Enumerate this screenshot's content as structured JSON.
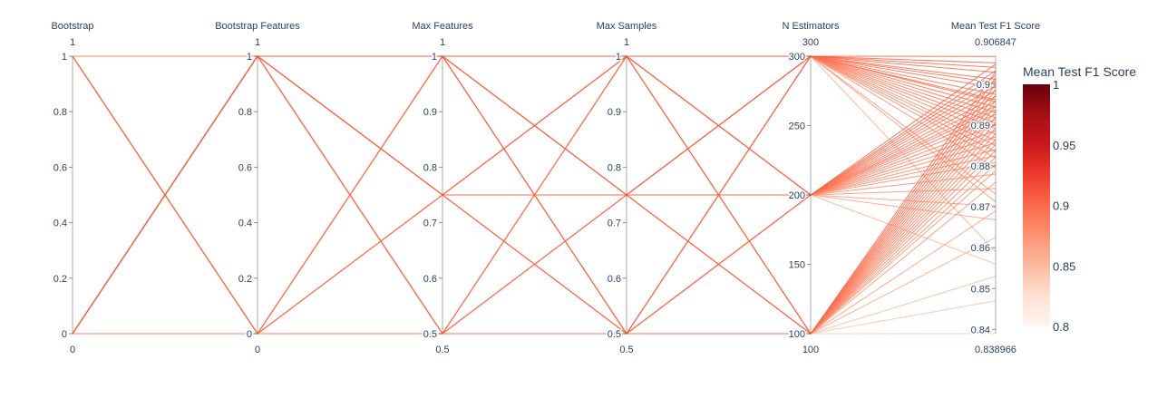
{
  "chart_data": {
    "type": "parallel_coordinates",
    "dimensions": [
      {
        "label": "Bootstrap",
        "range": [
          0,
          1
        ],
        "range_min_label": "0",
        "range_max_label": "1",
        "ticks": [
          0,
          0.2,
          0.4,
          0.6,
          0.8,
          1
        ],
        "tick_labels": [
          "0",
          "0.2",
          "0.4",
          "0.6",
          "0.8",
          "1"
        ]
      },
      {
        "label": "Bootstrap Features",
        "range": [
          0,
          1
        ],
        "range_min_label": "0",
        "range_max_label": "1",
        "ticks": [
          0,
          0.2,
          0.4,
          0.6,
          0.8,
          1
        ],
        "tick_labels": [
          "0",
          "0.2",
          "0.4",
          "0.6",
          "0.8",
          "1"
        ]
      },
      {
        "label": "Max Features",
        "range": [
          0.5,
          1
        ],
        "range_min_label": "0.5",
        "range_max_label": "1",
        "ticks": [
          0.5,
          0.6,
          0.7,
          0.8,
          0.9,
          1
        ],
        "tick_labels": [
          "0.5",
          "0.6",
          "0.7",
          "0.8",
          "0.9",
          "1"
        ]
      },
      {
        "label": "Max Samples",
        "range": [
          0.5,
          1
        ],
        "range_min_label": "0.5",
        "range_max_label": "1",
        "ticks": [
          0.5,
          0.6,
          0.7,
          0.8,
          0.9,
          1
        ],
        "tick_labels": [
          "0.5",
          "0.6",
          "0.7",
          "0.8",
          "0.9",
          "1"
        ]
      },
      {
        "label": "N Estimators",
        "range": [
          100,
          300
        ],
        "range_min_label": "100",
        "range_max_label": "300",
        "ticks": [
          100,
          150,
          200,
          250,
          300
        ],
        "tick_labels": [
          "100",
          "150",
          "200",
          "250",
          "300"
        ]
      },
      {
        "label": "Mean Test F1 Score",
        "range": [
          0.838966,
          0.906847
        ],
        "range_min_label": "0.838966",
        "range_max_label": "0.906847",
        "ticks": [
          0.84,
          0.85,
          0.86,
          0.87,
          0.88,
          0.89,
          0.9
        ],
        "tick_labels": [
          "0.84",
          "0.85",
          "0.86",
          "0.87",
          "0.88",
          "0.89",
          "0.9"
        ]
      }
    ],
    "lines": [
      [
        0,
        1,
        1,
        1,
        300,
        0.9068
      ],
      [
        0,
        1,
        1,
        0.75,
        300,
        0.9052
      ],
      [
        0,
        1,
        1,
        0.5,
        300,
        0.9041
      ],
      [
        0,
        1,
        0.75,
        1,
        300,
        0.9029
      ],
      [
        0,
        1,
        0.75,
        0.75,
        300,
        0.9012
      ],
      [
        0,
        1,
        0.75,
        0.5,
        300,
        0.9003
      ],
      [
        0,
        1,
        0.5,
        1,
        300,
        0.8991
      ],
      [
        0,
        1,
        0.5,
        0.75,
        300,
        0.8975
      ],
      [
        0,
        1,
        0.5,
        0.5,
        300,
        0.8962
      ],
      [
        1,
        0,
        1,
        1,
        300,
        0.8957
      ],
      [
        1,
        0,
        1,
        0.75,
        300,
        0.8944
      ],
      [
        1,
        0,
        1,
        0.5,
        300,
        0.8931
      ],
      [
        1,
        0,
        0.75,
        1,
        300,
        0.8918
      ],
      [
        1,
        0,
        0.75,
        0.75,
        300,
        0.8905
      ],
      [
        1,
        0,
        0.75,
        0.5,
        300,
        0.8892
      ],
      [
        1,
        0,
        0.5,
        1,
        300,
        0.8878
      ],
      [
        1,
        0,
        0.5,
        0.75,
        300,
        0.8862
      ],
      [
        1,
        0,
        0.5,
        0.5,
        300,
        0.885
      ],
      [
        0,
        0,
        1,
        1,
        300,
        0.8835
      ],
      [
        0,
        0,
        0.75,
        0.75,
        300,
        0.882
      ],
      [
        0,
        0,
        0.5,
        0.5,
        300,
        0.8731
      ],
      [
        1,
        1,
        1,
        1,
        300,
        0.8795
      ],
      [
        1,
        1,
        0.75,
        0.75,
        300,
        0.8712
      ],
      [
        1,
        1,
        0.5,
        0.5,
        300,
        0.859
      ],
      [
        0,
        1,
        1,
        1,
        200,
        0.9049
      ],
      [
        0,
        1,
        1,
        0.75,
        200,
        0.9033
      ],
      [
        0,
        1,
        1,
        0.5,
        200,
        0.9021
      ],
      [
        0,
        1,
        0.75,
        1,
        200,
        0.9008
      ],
      [
        0,
        1,
        0.75,
        0.75,
        200,
        0.8996
      ],
      [
        0,
        1,
        0.75,
        0.5,
        200,
        0.8984
      ],
      [
        0,
        1,
        0.5,
        1,
        200,
        0.897
      ],
      [
        0,
        1,
        0.5,
        0.75,
        200,
        0.8958
      ],
      [
        0,
        1,
        0.5,
        0.5,
        200,
        0.8946
      ],
      [
        1,
        0,
        1,
        1,
        200,
        0.8937
      ],
      [
        1,
        0,
        1,
        0.75,
        200,
        0.8926
      ],
      [
        1,
        0,
        1,
        0.5,
        200,
        0.8914
      ],
      [
        1,
        0,
        0.75,
        1,
        200,
        0.89
      ],
      [
        1,
        0,
        0.75,
        0.75,
        200,
        0.8886
      ],
      [
        1,
        0,
        0.75,
        0.5,
        200,
        0.8871
      ],
      [
        1,
        0,
        0.5,
        1,
        200,
        0.8856
      ],
      [
        1,
        0,
        0.5,
        0.75,
        200,
        0.884
      ],
      [
        1,
        0,
        0.5,
        0.5,
        200,
        0.8825
      ],
      [
        0,
        0,
        1,
        1,
        200,
        0.8808
      ],
      [
        0,
        0,
        0.75,
        0.75,
        200,
        0.8745
      ],
      [
        0,
        0,
        0.5,
        0.5,
        200,
        0.8668
      ],
      [
        1,
        1,
        1,
        1,
        200,
        0.878
      ],
      [
        1,
        1,
        0.75,
        0.75,
        200,
        0.8702
      ],
      [
        1,
        1,
        0.5,
        0.5,
        200,
        0.856
      ],
      [
        0,
        1,
        1,
        1,
        100,
        0.903
      ],
      [
        0,
        1,
        1,
        0.75,
        100,
        0.9015
      ],
      [
        0,
        1,
        1,
        0.5,
        100,
        0.9
      ],
      [
        0,
        1,
        0.75,
        1,
        100,
        0.8987
      ],
      [
        0,
        1,
        0.75,
        0.75,
        100,
        0.8973
      ],
      [
        0,
        1,
        0.75,
        0.5,
        100,
        0.896
      ],
      [
        0,
        1,
        0.5,
        1,
        100,
        0.8947
      ],
      [
        0,
        1,
        0.5,
        0.75,
        100,
        0.8933
      ],
      [
        0,
        1,
        0.5,
        0.5,
        100,
        0.892
      ],
      [
        1,
        0,
        1,
        1,
        100,
        0.8906
      ],
      [
        1,
        0,
        1,
        0.75,
        100,
        0.8893
      ],
      [
        1,
        0,
        1,
        0.5,
        100,
        0.8879
      ],
      [
        1,
        0,
        0.75,
        1,
        100,
        0.8865
      ],
      [
        1,
        0,
        0.75,
        0.75,
        100,
        0.8852
      ],
      [
        1,
        0,
        0.75,
        0.5,
        100,
        0.8838
      ],
      [
        1,
        0,
        0.5,
        1,
        100,
        0.8822
      ],
      [
        1,
        0,
        0.5,
        0.75,
        100,
        0.8804
      ],
      [
        1,
        0,
        0.5,
        0.5,
        100,
        0.8788
      ],
      [
        0,
        0,
        1,
        1,
        100,
        0.869
      ],
      [
        0,
        0,
        0.75,
        0.75,
        100,
        0.8625
      ],
      [
        0,
        0,
        0.5,
        0.5,
        100,
        0.847
      ],
      [
        1,
        1,
        1,
        1,
        100,
        0.876
      ],
      [
        1,
        1,
        0.75,
        0.75,
        100,
        0.853
      ],
      [
        1,
        1,
        0.5,
        0.5,
        100,
        0.839
      ]
    ],
    "colorbar": {
      "title": "Mean Test F1 Score",
      "colorscale": "Reds",
      "range": [
        0.8,
        1
      ],
      "ticks": [
        0.8,
        0.85,
        0.9,
        0.95,
        1
      ],
      "tick_labels": [
        "0.8",
        "0.85",
        "0.9",
        "0.95",
        "1"
      ],
      "colors": [
        "#fff5f0",
        "#fee0d2",
        "#fcbba1",
        "#fc9272",
        "#fb6a4a",
        "#ef3b2c",
        "#cb181d",
        "#a50f15",
        "#67000d"
      ]
    }
  }
}
